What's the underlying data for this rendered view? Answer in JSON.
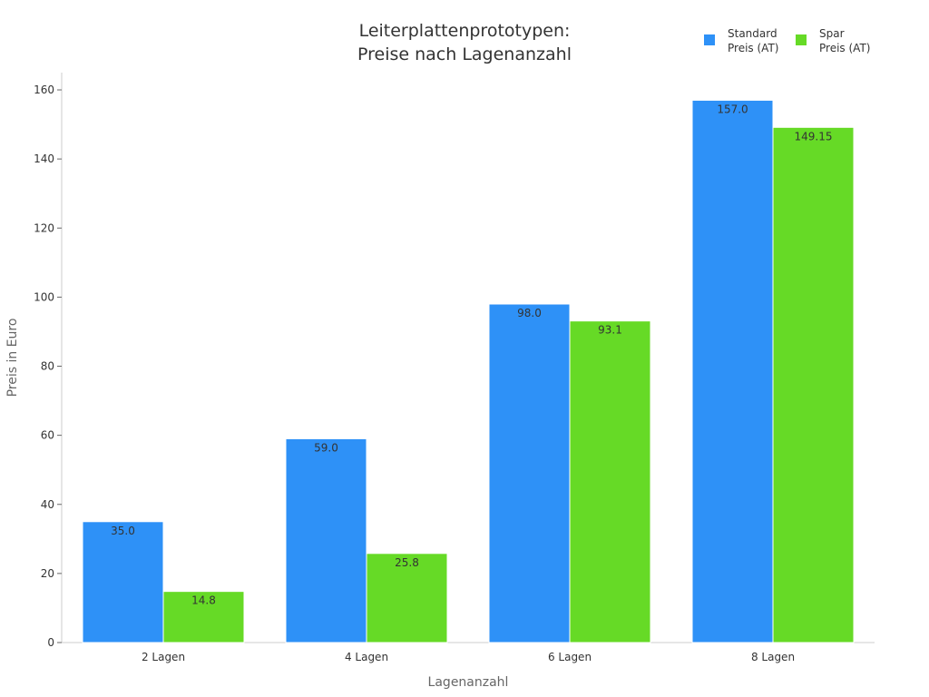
{
  "chart_data": {
    "type": "bar",
    "title_lines": [
      "Leiterplattenprototypen:",
      "Preise nach Lagenanzahl"
    ],
    "xlabel": "Lagenanzahl",
    "ylabel": "Preis in Euro",
    "categories": [
      "2 Lagen",
      "4 Lagen",
      "6 Lagen",
      "8 Lagen"
    ],
    "ylim": [
      0,
      165
    ],
    "yticks": [
      0,
      20,
      40,
      60,
      80,
      100,
      120,
      140,
      160
    ],
    "grid": false,
    "legend_position": "top-right",
    "series": [
      {
        "name_lines": [
          "Standard",
          "Preis (AT)"
        ],
        "color": "#2e91f7",
        "values": [
          35.0,
          59.0,
          98.0,
          157.0
        ],
        "labels": [
          "35.0",
          "59.0",
          "98.0",
          "157.0"
        ]
      },
      {
        "name_lines": [
          "Spar",
          "Preis (AT)"
        ],
        "color": "#66da26",
        "values": [
          14.8,
          25.8,
          93.1,
          149.15
        ],
        "labels": [
          "14.8",
          "25.8",
          "93.1",
          "149.15"
        ]
      }
    ]
  }
}
